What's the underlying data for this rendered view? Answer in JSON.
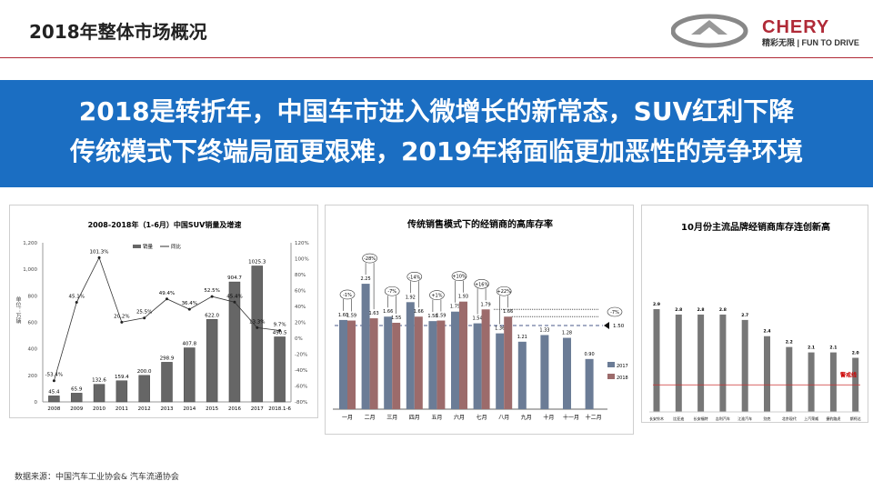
{
  "header": {
    "title": "2018年整体市场概况",
    "logo_brand": "CHERY",
    "logo_tagline": "精彩无限 | FUN TO DRIVE"
  },
  "banner": {
    "line1": "2018是转折年，中国车市进入微增长的新常态，SUV红利下降",
    "line2": "传统模式下终端局面更艰难，2019年将面临更加恶性的竞争环境"
  },
  "footer": {
    "source": "数据来源：中国汽车工业协会& 汽车流通协会"
  },
  "colors": {
    "banner": "#1b6ec2",
    "accent_red": "#b02a37",
    "bar_gray": "#666666",
    "series2017": "#6b7c96",
    "series2018": "#9c6b6b",
    "warning": "#cc0000"
  },
  "chart_data": [
    {
      "type": "bar+line",
      "title": "2008-2018年（1-6月）中国SUV销量及增速",
      "ylabel": "单位：万辆",
      "ylim": [
        0,
        1200
      ],
      "yticks": [
        "0",
        "200",
        "400",
        "600",
        "800",
        "1,000",
        "1,200"
      ],
      "y2lim": [
        -80,
        120
      ],
      "y2ticks": [
        "-80%",
        "-60%",
        "-40%",
        "-20%",
        "0%",
        "20%",
        "40%",
        "60%",
        "80%",
        "100%",
        "120%"
      ],
      "categories": [
        "2008",
        "2009",
        "2010",
        "2011",
        "2012",
        "2013",
        "2014",
        "2015",
        "2016",
        "2017",
        "2018.1-6"
      ],
      "series": [
        {
          "name": "销量",
          "type": "bar",
          "values": [
            45.4,
            65.9,
            132.6,
            159.4,
            200.0,
            298.9,
            407.8,
            622.0,
            904.7,
            1025.3,
            490.5
          ],
          "labels": [
            "45.4",
            "65.9",
            "132.6",
            "159.4",
            "200.0",
            "298.9",
            "407.8",
            "622.0",
            "904.7",
            "1025.3",
            "490.5"
          ]
        },
        {
          "name": "同比",
          "type": "line",
          "values": [
            -53.4,
            45.1,
            101.3,
            20.2,
            25.5,
            49.4,
            36.4,
            52.5,
            45.4,
            13.3,
            9.7
          ],
          "labels": [
            "-53.4%",
            "45.1%",
            "101.3%",
            "20.2%",
            "25.5%",
            "49.4%",
            "36.4%",
            "52.5%",
            "45.4%",
            "13.3%",
            "9.7%"
          ]
        }
      ],
      "legend": "top-center"
    },
    {
      "type": "bar",
      "title": "传统销售模式下的经销商的高库存率",
      "categories": [
        "一月",
        "二月",
        "三月",
        "四月",
        "五月",
        "六月",
        "七月",
        "八月",
        "九月",
        "十月",
        "十一月",
        "十二月"
      ],
      "ylim": [
        0,
        2.5
      ],
      "series": [
        {
          "name": "2017",
          "values": [
            1.6,
            2.25,
            1.66,
            1.92,
            1.58,
            1.75,
            1.54,
            1.36,
            1.21,
            1.33,
            1.28,
            0.9
          ]
        },
        {
          "name": "2018",
          "values": [
            1.59,
            1.63,
            1.55,
            1.66,
            1.59,
            1.93,
            1.79,
            1.66,
            null,
            null,
            null,
            null
          ]
        }
      ],
      "changes": [
        "-1%",
        "-28%",
        "-7%",
        "-14%",
        "+1%",
        "+10%",
        "+16%",
        "+22%"
      ],
      "reference_line": {
        "value": 1.5,
        "label": "1.50"
      },
      "side_note": "-7%",
      "legend": "right"
    },
    {
      "type": "bar",
      "title": "10月份主流品牌经销商库存连创新高",
      "categories": [
        "长安铃木",
        "比亚迪",
        "长安福特",
        "吉利汽车",
        "江淮汽车",
        "别克",
        "北京现代",
        "上汽荣威",
        "捷豹路虎",
        "斯柯达"
      ],
      "values": [
        2.9,
        2.8,
        2.8,
        2.8,
        2.7,
        2.4,
        2.2,
        2.1,
        2.1,
        2.0
      ],
      "ylim": [
        1.0,
        3.0
      ],
      "reference_line": {
        "value": 1.5,
        "label": "警戒线"
      }
    }
  ]
}
